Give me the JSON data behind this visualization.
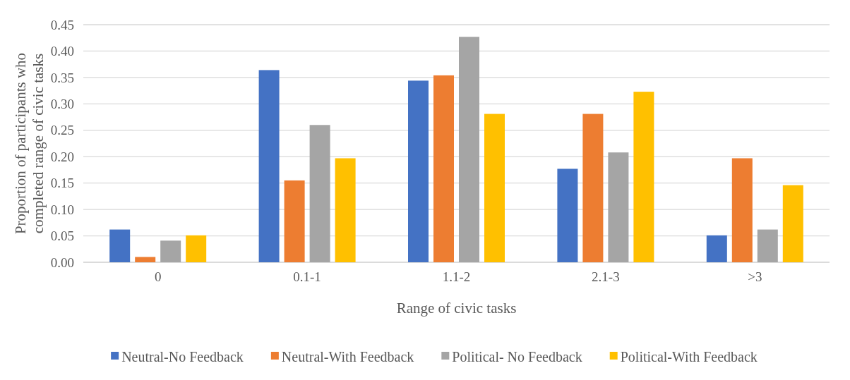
{
  "chart_data": {
    "type": "bar",
    "xlabel": "Range of civic tasks",
    "ylabel": "Proportion of participants who completed range of civic tasks",
    "categories": [
      "0",
      "0.1-1",
      "1.1-2",
      "2.1-3",
      ">3"
    ],
    "series": [
      {
        "name": "Neutral-No Feedback",
        "color": "#4472c4",
        "values": [
          0.062,
          0.364,
          0.344,
          0.177,
          0.051
        ]
      },
      {
        "name": "Neutral-With Feedback",
        "color": "#ed7d31",
        "values": [
          0.01,
          0.155,
          0.354,
          0.281,
          0.197
        ]
      },
      {
        "name": "Political- No Feedback",
        "color": "#a5a5a5",
        "values": [
          0.041,
          0.26,
          0.427,
          0.208,
          0.062
        ]
      },
      {
        "name": "Political-With Feedback",
        "color": "#ffc000",
        "values": [
          0.051,
          0.197,
          0.281,
          0.323,
          0.146
        ]
      }
    ],
    "ylim": [
      0,
      0.45
    ],
    "yticks": [
      {
        "value": 0,
        "label": "0.00"
      },
      {
        "value": 0.05,
        "label": "0.05"
      },
      {
        "value": 0.1,
        "label": "0.10"
      },
      {
        "value": 0.15,
        "label": "0.15"
      },
      {
        "value": 0.2,
        "label": "0.20"
      },
      {
        "value": 0.25,
        "label": "0.25"
      },
      {
        "value": 0.3,
        "label": "0.30"
      },
      {
        "value": 0.35,
        "label": "0.35"
      },
      {
        "value": 0.4,
        "label": "0.40"
      },
      {
        "value": 0.45,
        "label": "0.45"
      }
    ],
    "grid": "y",
    "legend": "bottom"
  }
}
